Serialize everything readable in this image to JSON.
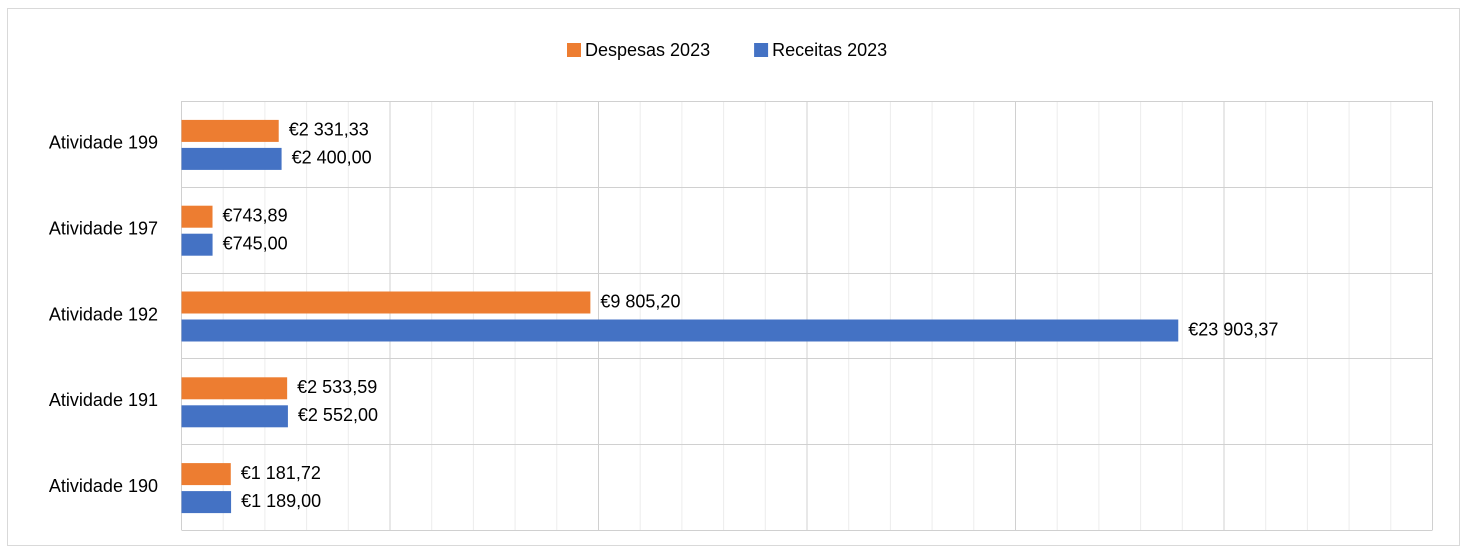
{
  "chart_data": {
    "type": "hbar",
    "categories": [
      "Atividade 199",
      "Atividade 197",
      "Atividade 192",
      "Atividade 191",
      "Atividade 190"
    ],
    "series": [
      {
        "name": "Despesas 2023",
        "color": "#ed7d31",
        "values": [
          2331.33,
          743.89,
          9805.2,
          2533.59,
          1181.72
        ],
        "value_labels": [
          "€2 331,33",
          "€743,89",
          "€9 805,20",
          "€2 533,59",
          "€1 181,72"
        ]
      },
      {
        "name": "Receitas 2023",
        "color": "#4472c4",
        "values": [
          2400.0,
          745.0,
          23903.37,
          2552.0,
          1189.0
        ],
        "value_labels": [
          "€2 400,00",
          "€745,00",
          "€23 903,37",
          "€2 552,00",
          "€1 189,00"
        ]
      }
    ],
    "xlim": [
      0,
      30000
    ],
    "xticks": [
      0,
      5000,
      10000,
      15000,
      20000,
      25000,
      30000
    ],
    "minor_xticks": [
      1000,
      2000,
      3000,
      4000,
      6000,
      7000,
      8000,
      9000,
      11000,
      12000,
      13000,
      14000,
      16000,
      17000,
      18000,
      19000,
      21000,
      22000,
      23000,
      24000,
      26000,
      27000,
      28000,
      29000
    ],
    "show_tick_labels": false,
    "grid": true,
    "legend": "top"
  }
}
